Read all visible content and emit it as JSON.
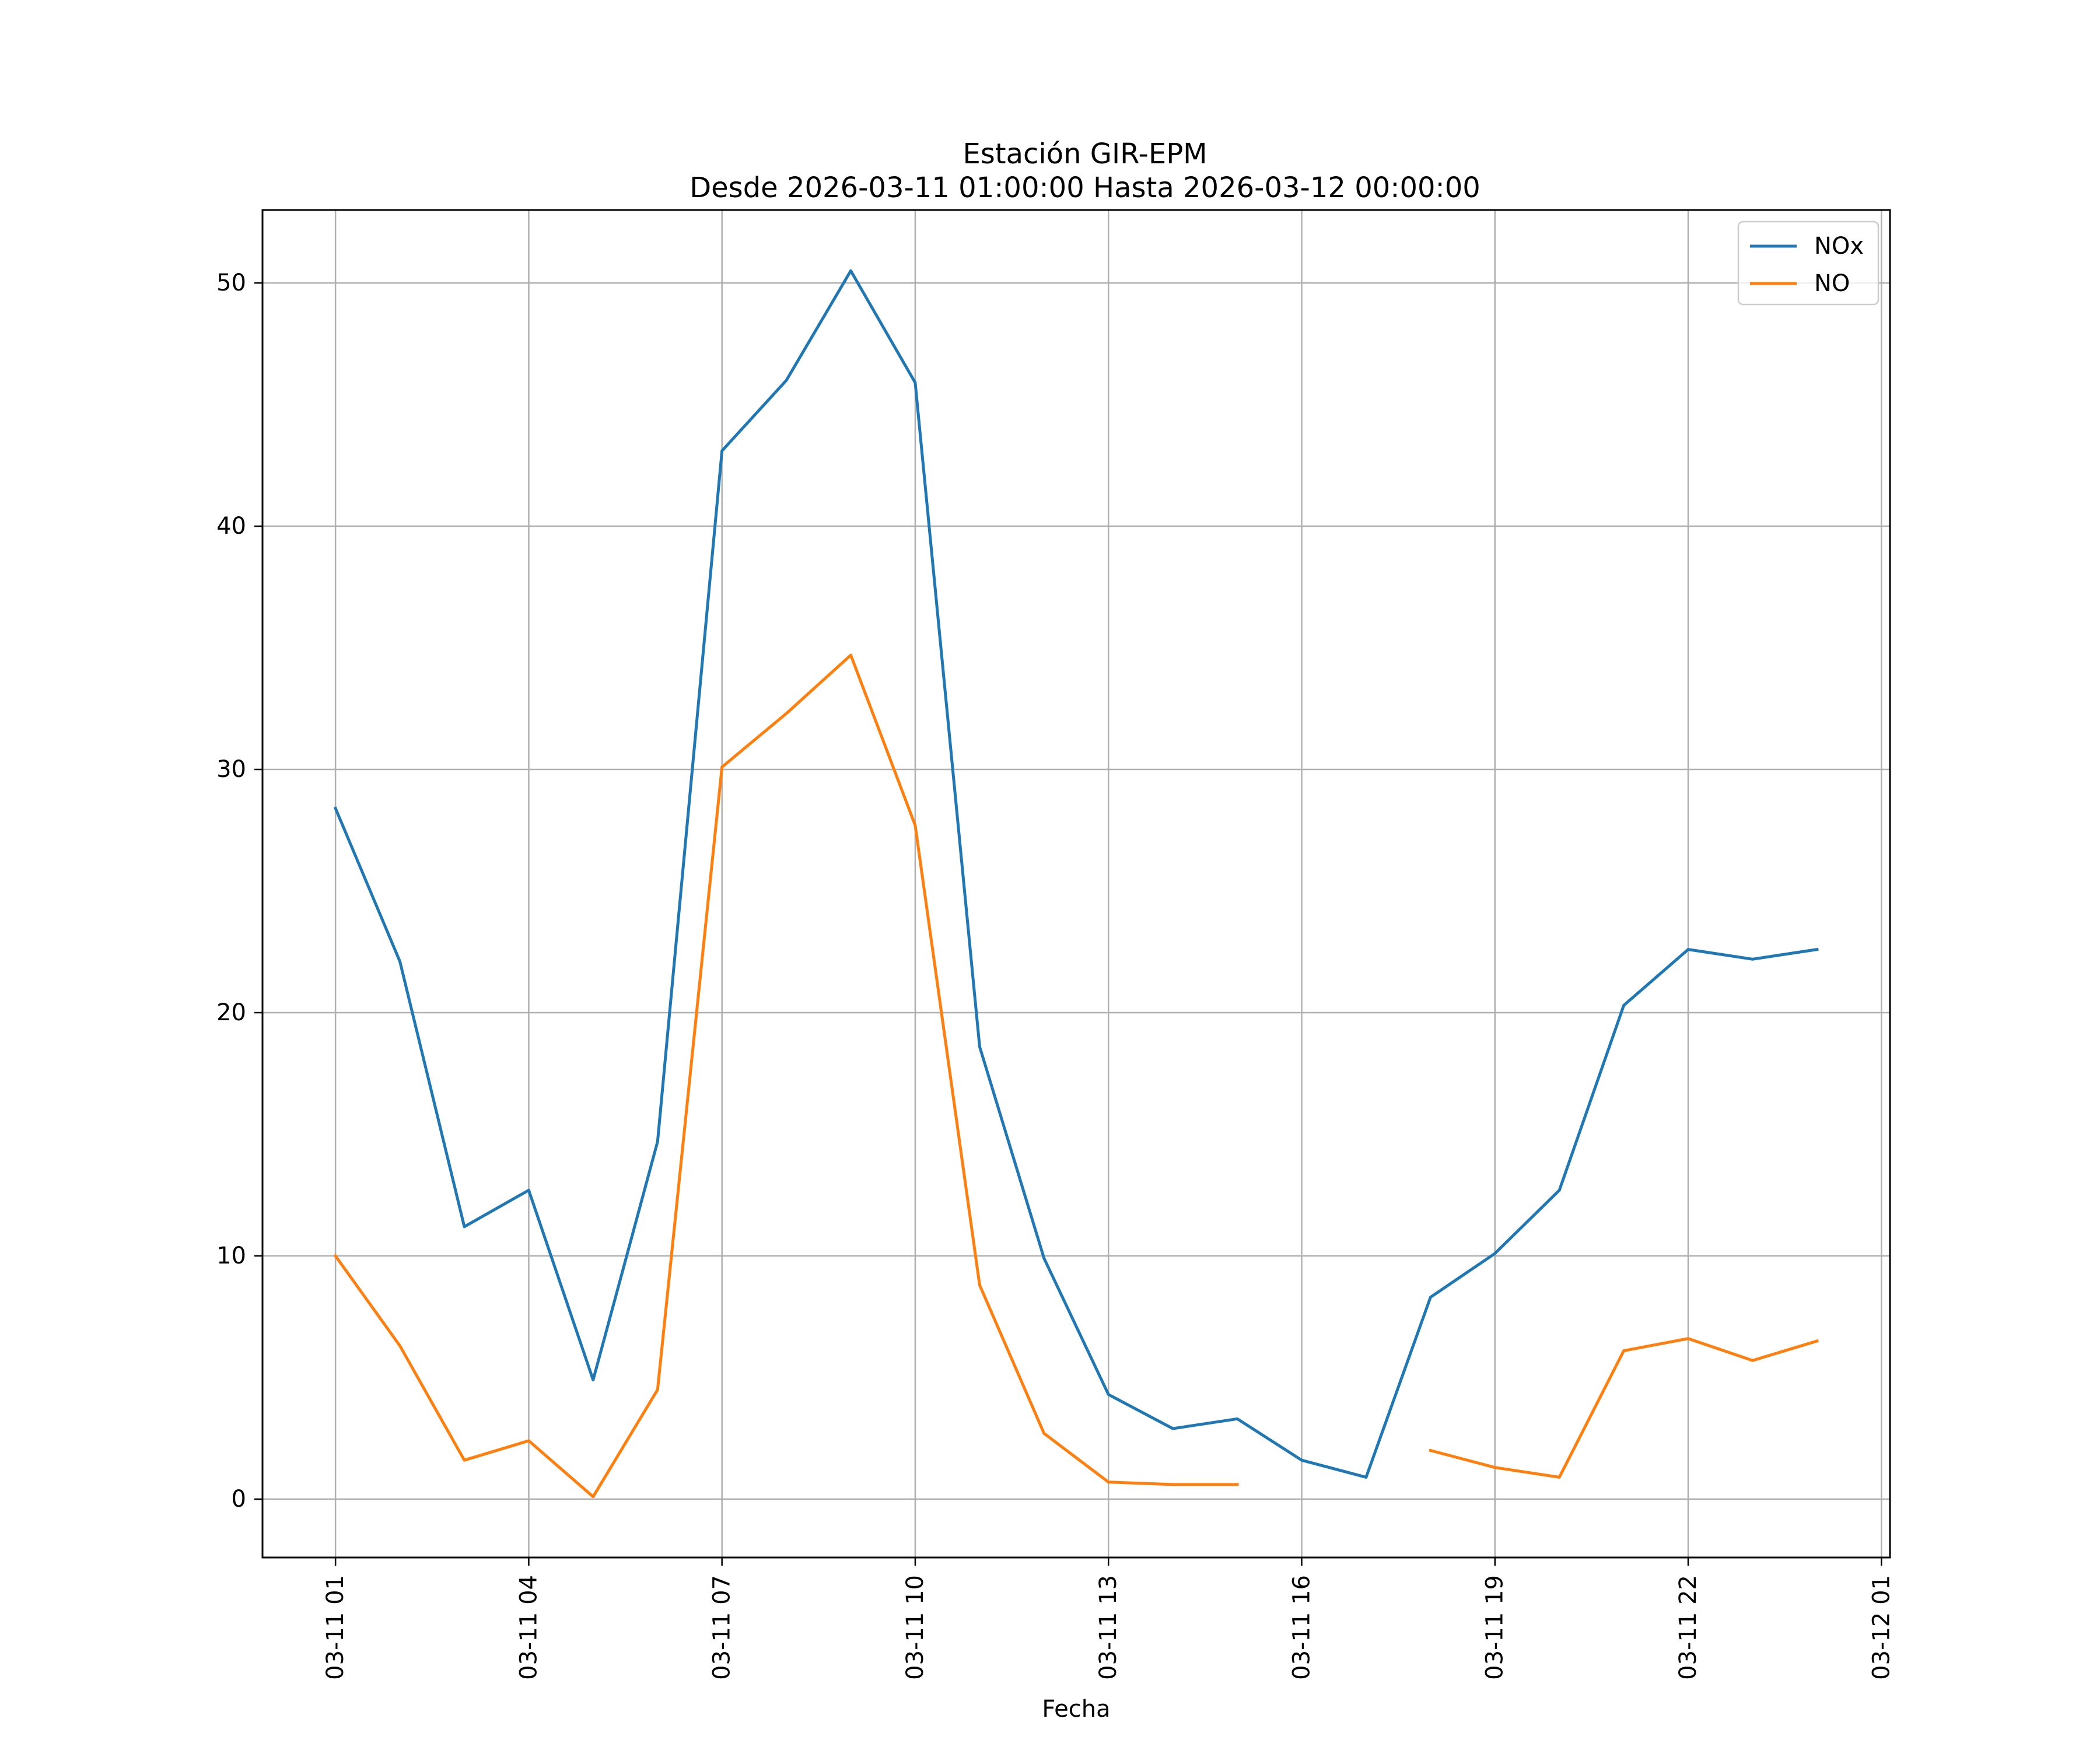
{
  "chart_data": {
    "type": "line",
    "title": "Estación GIR-EPM",
    "subtitle": "Desde 2026-03-11 01:00:00 Hasta 2026-03-12 00:00:00",
    "xlabel": "Fecha",
    "ylabel": "",
    "x": [
      "2026-03-11 01:00",
      "2026-03-11 02:00",
      "2026-03-11 03:00",
      "2026-03-11 04:00",
      "2026-03-11 05:00",
      "2026-03-11 06:00",
      "2026-03-11 07:00",
      "2026-03-11 08:00",
      "2026-03-11 09:00",
      "2026-03-11 10:00",
      "2026-03-11 11:00",
      "2026-03-11 12:00",
      "2026-03-11 13:00",
      "2026-03-11 14:00",
      "2026-03-11 15:00",
      "2026-03-11 16:00",
      "2026-03-11 17:00",
      "2026-03-11 18:00",
      "2026-03-11 19:00",
      "2026-03-11 20:00",
      "2026-03-11 21:00",
      "2026-03-11 22:00",
      "2026-03-11 23:00",
      "2026-03-12 00:00"
    ],
    "series": [
      {
        "name": "NOx",
        "color": "#1f77b4",
        "values": [
          28.4,
          22.1,
          11.2,
          12.7,
          4.9,
          14.7,
          43.1,
          46.0,
          50.5,
          45.9,
          18.6,
          9.9,
          4.3,
          2.9,
          3.3,
          1.6,
          0.9,
          8.3,
          10.1,
          12.7,
          20.3,
          22.6,
          22.2,
          22.6
        ]
      },
      {
        "name": "NO",
        "color": "#ff7f0e",
        "values": [
          10.0,
          6.3,
          1.6,
          2.4,
          0.1,
          4.5,
          30.1,
          32.3,
          34.7,
          27.7,
          8.8,
          2.7,
          0.7,
          0.6,
          0.6,
          null,
          null,
          2.0,
          1.3,
          0.9,
          6.1,
          6.6,
          5.7,
          6.5
        ]
      }
    ],
    "xlim": [
      "2026-03-10 23:52",
      "2026-03-12 01:08"
    ],
    "ylim": [
      -2.4,
      53.0
    ],
    "xticks": [
      "03-11 01",
      "03-11 04",
      "03-11 07",
      "03-11 10",
      "03-11 13",
      "03-11 16",
      "03-11 19",
      "03-11 22",
      "03-12 01"
    ],
    "yticks": [
      0,
      10,
      20,
      30,
      40,
      50
    ],
    "grid": true,
    "legend": "top-right"
  }
}
